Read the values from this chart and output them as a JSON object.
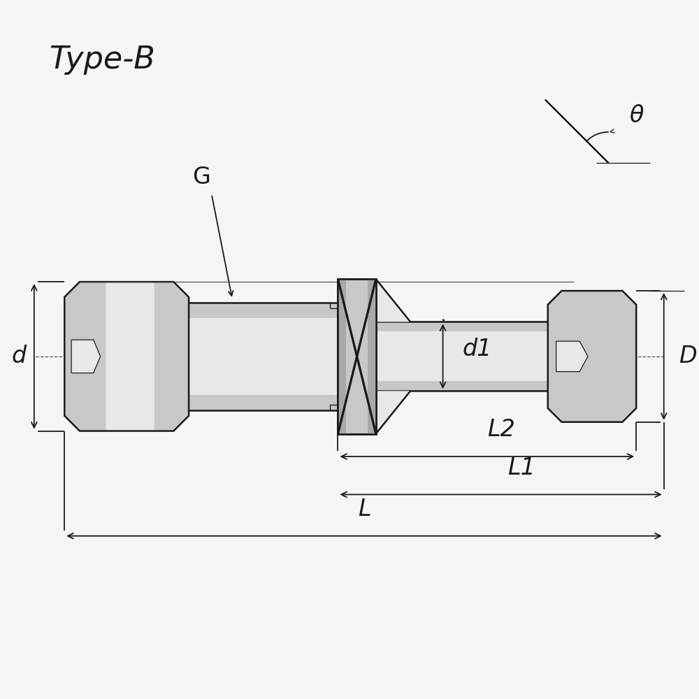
{
  "title": "Type-B",
  "bg_color": "#f5f5f5",
  "line_color": "#1a1a1a",
  "fill_light": "#e8e8e8",
  "fill_mid": "#c8c8c8",
  "fill_dark": "#a8a8a8",
  "fill_darkest": "#888888",
  "labels": {
    "G": "G",
    "d": "d",
    "d1": "d1",
    "D": "D",
    "L": "L",
    "L1": "L1",
    "L2": "L2",
    "theta": "θ"
  },
  "title_fontsize": 32,
  "label_fontsize": 24,
  "dim_fontsize": 20,
  "figsize": [
    10,
    10
  ],
  "dpi": 100
}
